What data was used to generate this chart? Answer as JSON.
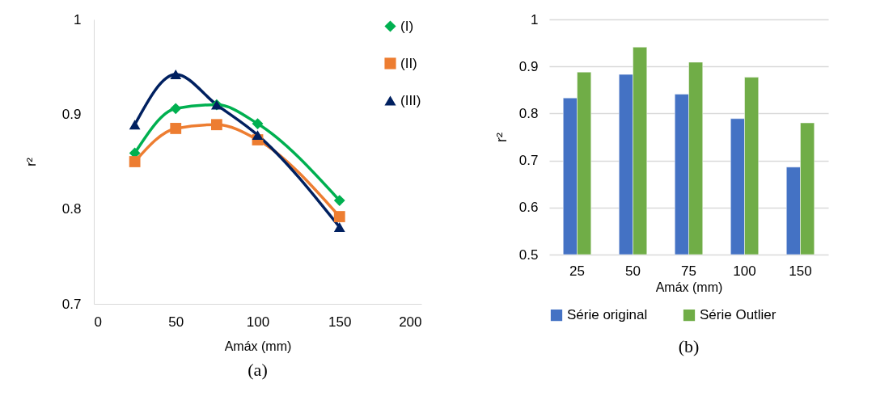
{
  "chart_data": [
    {
      "type": "line",
      "title": "(a)",
      "xlabel": "Amáx (mm)",
      "ylabel": "r²",
      "x": [
        25,
        50,
        75,
        100,
        150
      ],
      "xlim": [
        0,
        200
      ],
      "xticks": [
        0,
        50,
        100,
        150,
        200
      ],
      "ylim": [
        0.7,
        1
      ],
      "yticks": [
        0.7,
        0.8,
        0.9,
        1
      ],
      "grid": false,
      "legend": "top right",
      "line_style": "solid",
      "series": [
        {
          "name": "(I)",
          "color": "#00b050",
          "marker": "diamond",
          "values": [
            0.859,
            0.906,
            0.91,
            0.89,
            0.809
          ]
        },
        {
          "name": "(II)",
          "color": "#ed7d31",
          "marker": "square",
          "values": [
            0.85,
            0.885,
            0.889,
            0.873,
            0.792
          ]
        },
        {
          "name": "(III)",
          "color": "#002060",
          "marker": "triangle",
          "values": [
            0.889,
            0.942,
            0.91,
            0.878,
            0.781
          ]
        }
      ]
    },
    {
      "type": "bar",
      "title": "(b)",
      "xlabel": "Amáx (mm)",
      "ylabel": "r²",
      "categories": [
        "25",
        "50",
        "75",
        "100",
        "150"
      ],
      "ylim": [
        0.5,
        1
      ],
      "yticks": [
        0.5,
        0.6,
        0.7,
        0.8,
        0.9,
        1
      ],
      "grid": "y",
      "legend": "bottom",
      "series": [
        {
          "name": "Série original",
          "color": "#4472c4",
          "values": [
            0.833,
            0.883,
            0.841,
            0.789,
            0.686
          ]
        },
        {
          "name": "Série Outlier",
          "color": "#70ad47",
          "values": [
            0.888,
            0.941,
            0.909,
            0.877,
            0.78
          ]
        }
      ]
    }
  ]
}
